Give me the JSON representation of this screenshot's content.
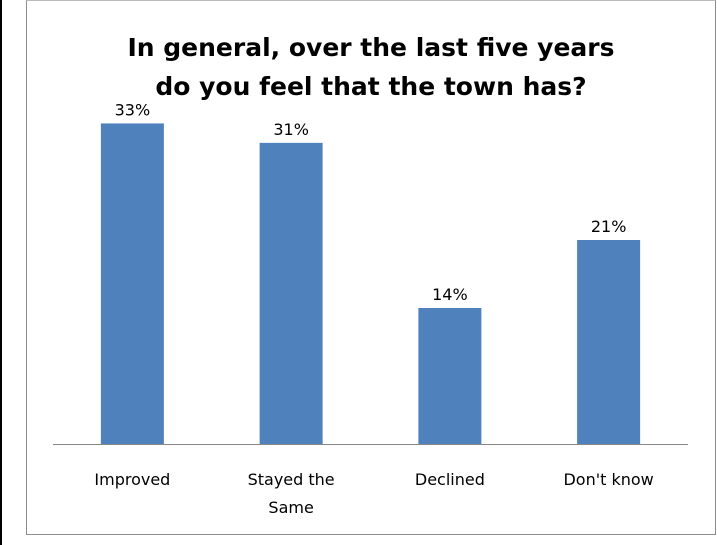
{
  "chart_data": {
    "type": "bar",
    "title": [
      "In general, over the last five years",
      "do you feel that the town has?"
    ],
    "categories": [
      [
        "Improved"
      ],
      [
        "Stayed the",
        "Same"
      ],
      [
        "Declined"
      ],
      [
        "Don't know"
      ]
    ],
    "values": [
      33,
      31,
      14,
      21
    ],
    "value_labels": [
      "33%",
      "31%",
      "14%",
      "21%"
    ],
    "ylim": [
      0,
      35
    ],
    "grid": false,
    "legend": "none",
    "bar_color": "#4f81bd",
    "axis_color": "#878787"
  }
}
